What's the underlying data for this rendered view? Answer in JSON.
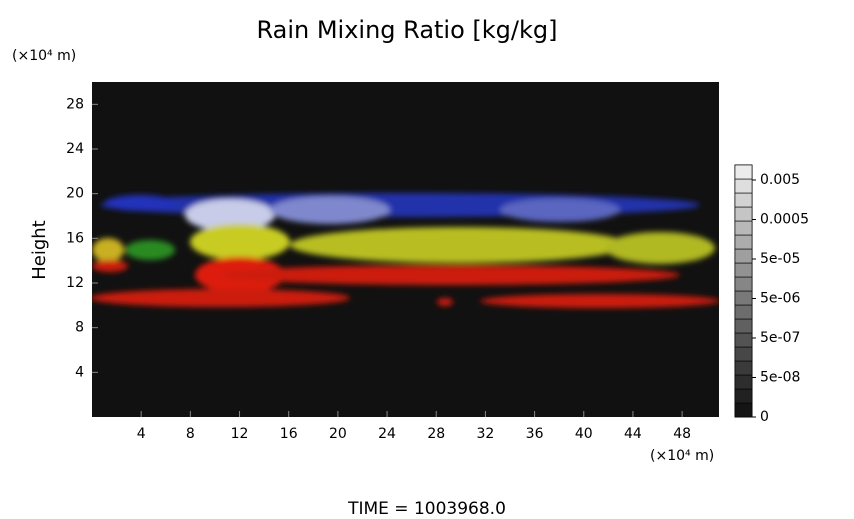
{
  "chart_data": {
    "type": "volume-image",
    "title": "Rain Mixing Ratio [kg/kg]",
    "y_label": "Height",
    "y_unit": "(×10⁴ m)",
    "x_unit": "(×10⁴ m)",
    "footer": "TIME = 1003968.0",
    "xlim": [
      0,
      51
    ],
    "xticks": [
      4,
      8,
      12,
      16,
      20,
      24,
      28,
      32,
      36,
      40,
      44,
      48
    ],
    "ylim": [
      0,
      30
    ],
    "yticks": [
      4,
      8,
      12,
      16,
      20,
      24,
      28
    ],
    "colorbar_ticks": [
      0,
      {
        "value": 5e-08,
        "label": "5e-08"
      },
      {
        "value": 5e-07,
        "label": "5e-07"
      },
      {
        "value": 5e-06,
        "label": "5e-06"
      },
      {
        "value": 5e-05,
        "label": "5e-05"
      },
      0.0005,
      0.005
    ]
  }
}
